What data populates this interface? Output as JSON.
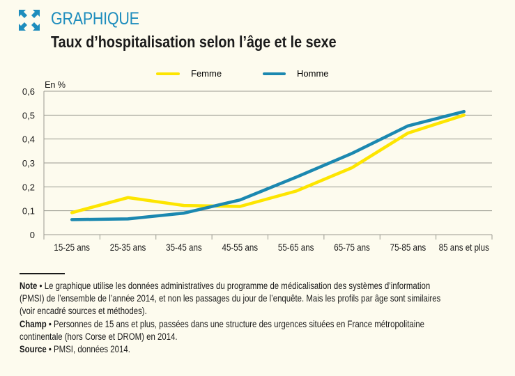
{
  "header": {
    "kicker": "GRAPHIQUE",
    "title": "Taux d’hospitalisation selon l’âge et le sexe",
    "icon": "expand-arrows-icon"
  },
  "colors": {
    "accent": "#1e8dbd",
    "femme": "#fde500",
    "homme": "#1b88b0",
    "grid": "#9a9a90"
  },
  "chart_data": {
    "type": "line",
    "title": "Taux d’hospitalisation selon l’âge et le sexe",
    "ylabel": "En %",
    "xlabel": "",
    "ylim": [
      0,
      0.6
    ],
    "yticks": [
      "0",
      "0,1",
      "0,2",
      "0,3",
      "0,4",
      "0,5",
      "0,6"
    ],
    "grid": true,
    "legend": "top",
    "categories": [
      "15-25 ans",
      "25-35 ans",
      "35-45 ans",
      "45-55 ans",
      "55-65 ans",
      "65-75 ans",
      "75-85 ans",
      "85 ans et plus"
    ],
    "series": [
      {
        "name": "Femme",
        "color": "#fde500",
        "values": [
          0.092,
          0.155,
          0.122,
          0.118,
          0.182,
          0.28,
          0.425,
          0.5
        ]
      },
      {
        "name": "Homme",
        "color": "#1b88b0",
        "values": [
          0.063,
          0.066,
          0.09,
          0.145,
          0.24,
          0.34,
          0.455,
          0.515
        ]
      }
    ]
  },
  "notes": {
    "note_label": "Note",
    "note_line1": " • Le graphique utilise les données administratives du programme de médicalisation des systèmes d’information",
    "note_line2": "(PMSI) de l’ensemble de l’année 2014, et non les passages du jour de l’enquête. Mais les profils par âge sont similaires",
    "note_line3": "(voir encadré sources et méthodes).",
    "champ_label": "Champ",
    "champ_line1": " • Personnes de 15 ans et plus, passées dans une structure des urgences situées en France métropolitaine",
    "champ_line2": "continentale (hors Corse et DROM) en 2014.",
    "source_label": "Source",
    "source_line1": " • PMSI, données 2014."
  }
}
